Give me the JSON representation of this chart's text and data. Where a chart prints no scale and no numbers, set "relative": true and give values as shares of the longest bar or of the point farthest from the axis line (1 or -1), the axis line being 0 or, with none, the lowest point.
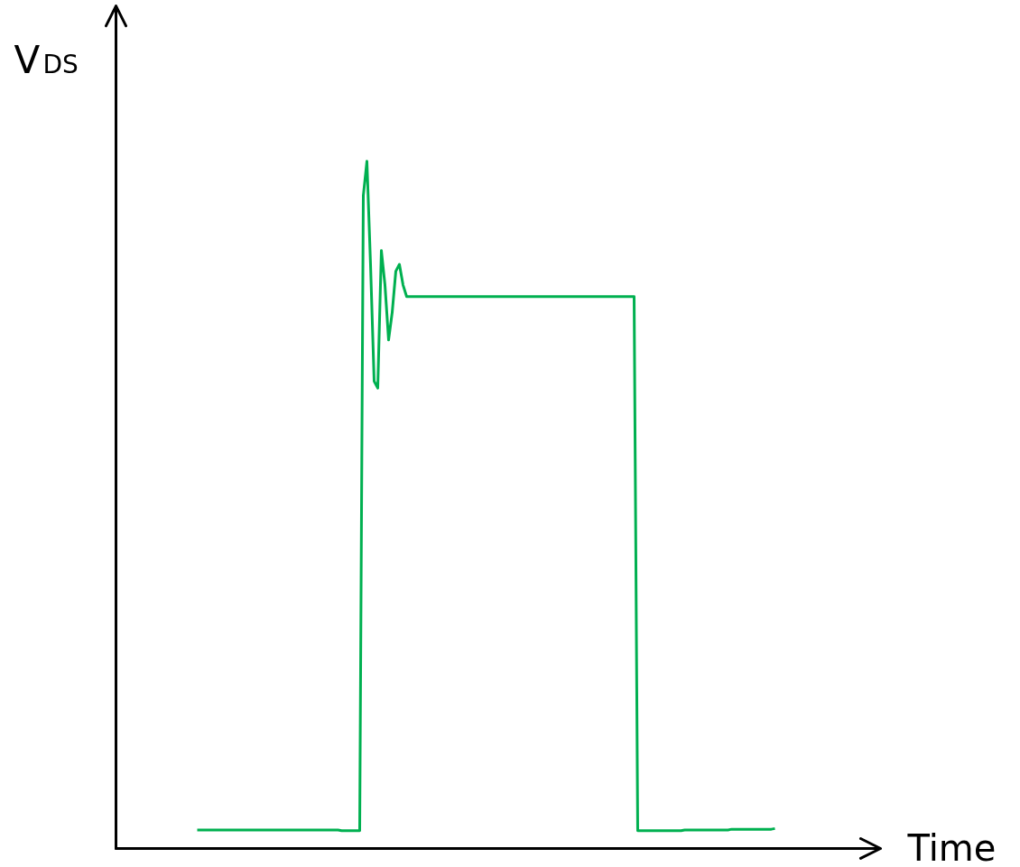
{
  "chart_data": {
    "type": "line",
    "relative": true,
    "xlabel": "Time",
    "ylabel": "V$_{DS}$",
    "tick_labels": false,
    "grid": false,
    "marker": "none",
    "line_style": "solid",
    "categories": [
      null,
      null,
      null,
      null,
      null,
      null,
      null,
      null,
      null,
      null,
      null,
      null,
      null,
      null,
      null,
      null,
      null,
      null,
      null,
      null,
      null,
      null,
      null,
      null,
      null,
      null,
      null,
      null,
      null,
      null,
      null,
      null,
      null,
      null,
      null,
      null,
      null,
      null,
      null,
      null,
      null,
      null,
      null,
      null,
      null,
      null,
      null,
      null,
      null,
      null,
      null,
      null,
      null,
      null,
      null,
      null,
      null,
      null,
      null,
      null,
      null,
      null,
      null,
      null,
      null,
      null,
      null,
      null,
      null,
      null,
      null,
      null,
      null,
      null,
      null,
      null,
      null,
      null,
      null,
      null,
      null,
      null,
      null,
      null,
      null,
      null,
      null,
      null,
      null,
      null,
      null,
      null,
      null,
      null,
      null,
      null,
      null,
      null,
      null,
      null,
      null,
      null,
      null,
      null,
      null,
      null,
      null,
      null,
      null,
      null,
      null,
      null,
      null,
      null,
      null,
      null,
      null,
      null,
      null,
      null,
      null,
      null,
      null,
      null,
      null,
      null,
      null,
      null,
      null,
      null,
      null,
      null,
      null,
      null,
      null,
      null,
      null,
      null,
      null,
      null,
      null,
      null,
      null,
      null,
      null,
      null,
      null,
      null,
      null,
      null,
      null,
      null,
      null,
      null,
      null,
      null,
      null,
      null,
      null,
      null,
      null
    ],
    "series": [
      {
        "color": "#00b050",
        "values": [
          0.027,
          0.027,
          0.027,
          0.027,
          0.027,
          0.027,
          0.027,
          0.027,
          0.027,
          0.027,
          0.027,
          0.027,
          0.027,
          0.027,
          0.027,
          0.027,
          0.027,
          0.027,
          0.027,
          0.027,
          0.027,
          0.027,
          0.027,
          0.027,
          0.027,
          0.027,
          0.027,
          0.027,
          0.027,
          0.027,
          0.027,
          0.027,
          0.027,
          0.027,
          0.027,
          0.027,
          0.027,
          0.027,
          0.027,
          0.027,
          0.026,
          0.026,
          0.026,
          0.026,
          0.026,
          0.026,
          0.95,
          1.0,
          0.85,
          0.68,
          0.67,
          0.87,
          0.82,
          0.74,
          0.78,
          0.84,
          0.85,
          0.82,
          0.803,
          0.803,
          0.803,
          0.803,
          0.803,
          0.803,
          0.803,
          0.803,
          0.803,
          0.803,
          0.803,
          0.803,
          0.803,
          0.803,
          0.803,
          0.803,
          0.803,
          0.803,
          0.803,
          0.803,
          0.803,
          0.803,
          0.803,
          0.803,
          0.803,
          0.803,
          0.803,
          0.803,
          0.803,
          0.803,
          0.803,
          0.803,
          0.803,
          0.803,
          0.803,
          0.803,
          0.803,
          0.803,
          0.803,
          0.803,
          0.803,
          0.803,
          0.803,
          0.803,
          0.803,
          0.803,
          0.803,
          0.803,
          0.803,
          0.803,
          0.803,
          0.803,
          0.803,
          0.803,
          0.803,
          0.803,
          0.803,
          0.803,
          0.803,
          0.803,
          0.803,
          0.803,
          0.803,
          0.803,
          0.026,
          0.026,
          0.026,
          0.026,
          0.026,
          0.026,
          0.026,
          0.026,
          0.026,
          0.026,
          0.026,
          0.026,
          0.026,
          0.027,
          0.027,
          0.027,
          0.027,
          0.027,
          0.027,
          0.027,
          0.027,
          0.027,
          0.027,
          0.027,
          0.027,
          0.027,
          0.028,
          0.028,
          0.028,
          0.028,
          0.028,
          0.028,
          0.028,
          0.028,
          0.028,
          0.028,
          0.028,
          0.028,
          0.029
        ]
      }
    ]
  }
}
